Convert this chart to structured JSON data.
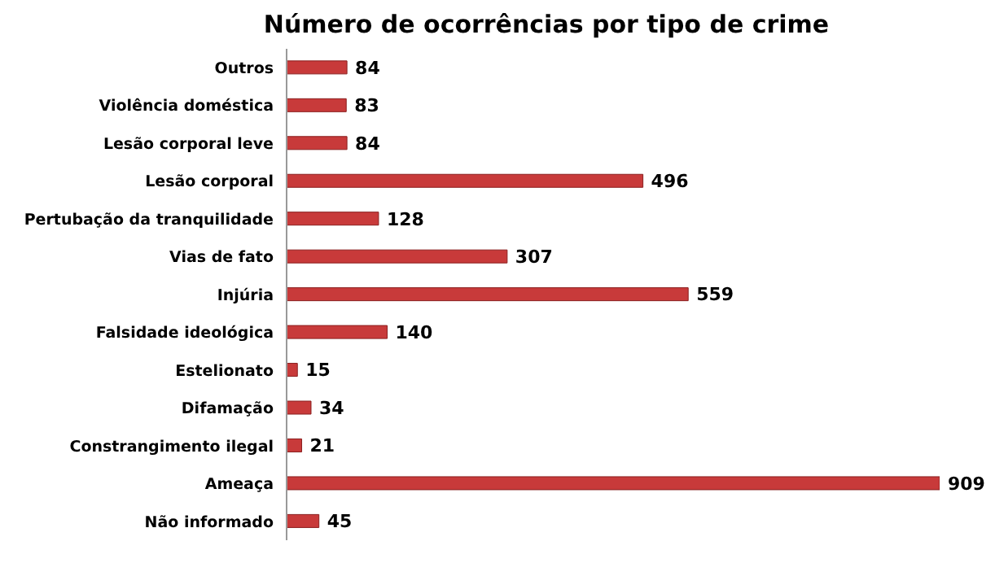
{
  "chart_data": {
    "type": "bar",
    "orientation": "horizontal",
    "title": "Número de ocorrências por tipo de crime",
    "categories": [
      "Outros",
      "Violência doméstica",
      "Lesão corporal leve",
      "Lesão corporal",
      "Pertubação da tranquilidade",
      "Vias de fato",
      "Injúria",
      "Falsidade ideológica",
      "Estelionato",
      "Difamação",
      "Constrangimento ilegal",
      "Ameaça",
      "Não informado"
    ],
    "values": [
      84,
      83,
      84,
      496,
      128,
      307,
      559,
      140,
      15,
      34,
      21,
      909,
      45
    ],
    "color": "#c83a3a",
    "data_labels": true
  }
}
